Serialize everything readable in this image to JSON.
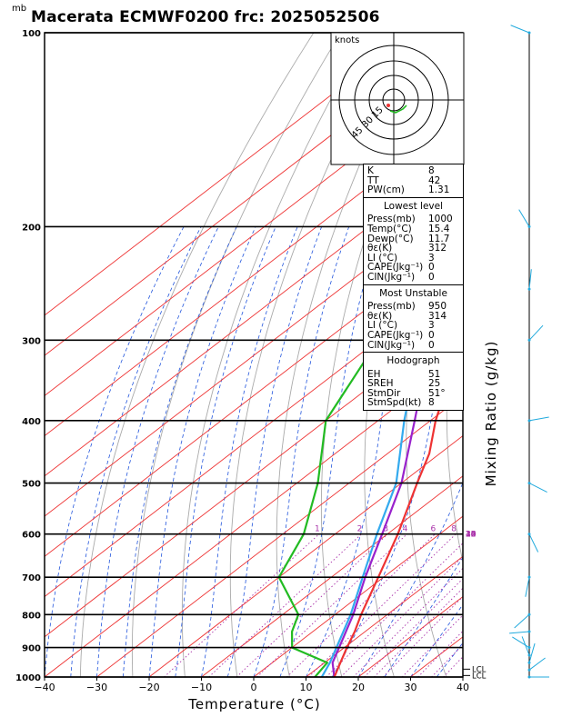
{
  "header": {
    "title": "Macerata ECMWF0200 frc: 2025052506",
    "unit_label": "mb"
  },
  "colors": {
    "temperature": "#ee3333",
    "dewpoint": "#22bb22",
    "parcel": "#9922cc",
    "wetbulb": "#33aaee",
    "isotherm": "#ee3333",
    "dry_adiabat": "#aaaaaa",
    "moist_adiabat": "#2255dd",
    "mixing_ratio": "#aa33aa",
    "wind": "#22aadd"
  },
  "chart_data": {
    "type": "skew-t",
    "xlabel": "Temperature (°C)",
    "ylabel_right": "Mixing Ratio (g/kg)",
    "x_ticks": [
      -40,
      -30,
      -20,
      -10,
      0,
      10,
      20,
      30,
      40
    ],
    "xlim": [
      -40,
      40
    ],
    "pressure_ticks": [
      100,
      200,
      300,
      400,
      500,
      600,
      700,
      800,
      900,
      1000
    ],
    "ylim_hpa": [
      1000,
      100
    ],
    "y_scale": "log",
    "mixing_ratio_labels": [
      "1",
      "2",
      "3",
      "4",
      "6",
      "8",
      "10",
      "12",
      "14",
      "16",
      "18",
      "20",
      "25",
      "30",
      "35",
      "40"
    ],
    "lcl_labels": [
      "LCL",
      "LCL"
    ],
    "temperature": {
      "pressure": [
        1000,
        950,
        900,
        850,
        800,
        700,
        600,
        500,
        450,
        400,
        300,
        250,
        200,
        150,
        100
      ],
      "values": [
        15.4,
        13,
        10.5,
        8,
        5,
        -1,
        -8,
        -17,
        -22,
        -29,
        -44,
        -53,
        -55,
        -57,
        -58
      ]
    },
    "dewpoint": {
      "pressure": [
        1000,
        950,
        900,
        850,
        800,
        700,
        600,
        500,
        400,
        300,
        250,
        200,
        150,
        100
      ],
      "values": [
        11.7,
        10.5,
        0,
        -4,
        -7,
        -20,
        -26,
        -36,
        -50,
        -60,
        -66,
        -73,
        -78,
        -82
      ]
    },
    "parcel": {
      "pressure": [
        1000,
        950,
        900,
        800,
        700,
        600,
        500,
        400,
        300,
        200,
        100
      ],
      "values": [
        15.4,
        11.5,
        9,
        3.5,
        -3.5,
        -11,
        -20,
        -33,
        -50,
        -71,
        -98
      ]
    },
    "wetbulb": {
      "pressure": [
        1000,
        950,
        900,
        800,
        700,
        600,
        500,
        400,
        300,
        200,
        100
      ],
      "values": [
        13,
        11,
        8.5,
        3,
        -4,
        -12,
        -21,
        -35,
        -52,
        -73,
        -100
      ]
    },
    "wind_pressure": [
      1000,
      975,
      950,
      925,
      900,
      850,
      800,
      700,
      600,
      500,
      400,
      300,
      250,
      200,
      100
    ]
  },
  "hodograph": {
    "units_label": "knots",
    "ring_labels": [
      "15",
      "30",
      "45"
    ]
  },
  "indices": {
    "general": [
      {
        "label": "K",
        "value": "8"
      },
      {
        "label": "TT",
        "value": "42"
      },
      {
        "label": "PW(cm)",
        "value": "1.31"
      }
    ],
    "lowest": {
      "title": "Lowest level",
      "rows": [
        {
          "label": "Press(mb)",
          "value": "1000"
        },
        {
          "label": "Temp(°C)",
          "value": "15.4"
        },
        {
          "label": "Dewp(°C)",
          "value": "11.7"
        },
        {
          "label": "θε(K)",
          "value": "312"
        },
        {
          "label": "LI (°C)",
          "value": "3"
        },
        {
          "label": "CAPE(Jkg⁻¹)",
          "value": "0"
        },
        {
          "label": "CIN(Jkg⁻¹)",
          "value": "0"
        }
      ]
    },
    "unstable": {
      "title": "Most Unstable",
      "rows": [
        {
          "label": "Press(mb)",
          "value": "950"
        },
        {
          "label": "θε(K)",
          "value": "314"
        },
        {
          "label": "LI (°C)",
          "value": "3"
        },
        {
          "label": "CAPE(Jkg⁻¹)",
          "value": "0"
        },
        {
          "label": "CIN(Jkg⁻¹)",
          "value": "0"
        }
      ]
    },
    "hodo": {
      "title": "Hodograph",
      "rows": [
        {
          "label": "EH",
          "value": "51"
        },
        {
          "label": "SREH",
          "value": "25"
        },
        {
          "label": "StmDir",
          "value": "51°"
        },
        {
          "label": "StmSpd(kt)",
          "value": "8"
        }
      ]
    }
  }
}
